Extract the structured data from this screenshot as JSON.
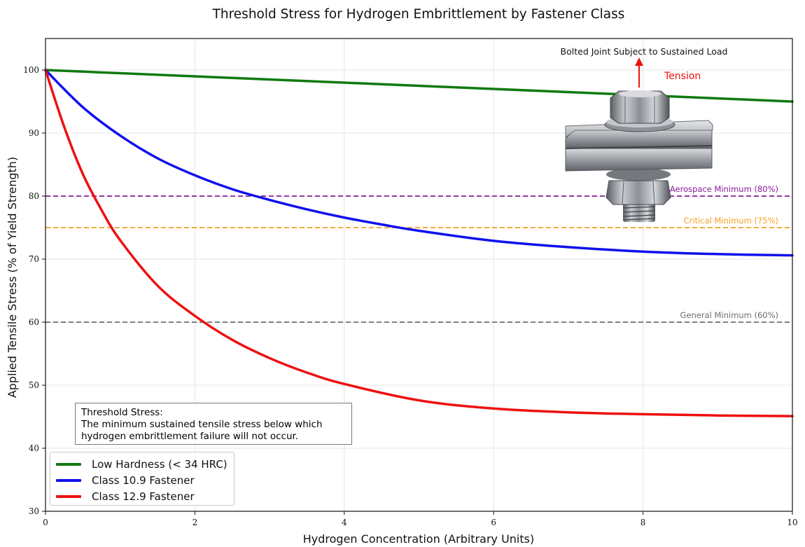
{
  "chart_data": {
    "type": "line",
    "title": "Threshold Stress for Hydrogen Embrittlement by Fastener Class",
    "xlabel": "Hydrogen Concentration (Arbitrary Units)",
    "ylabel": "Applied Tensile Stress (% of Yield Strength)",
    "xlim": [
      0,
      10
    ],
    "ylim": [
      30,
      105
    ],
    "xticks": [
      0,
      2,
      4,
      6,
      8,
      10
    ],
    "yticks": [
      30,
      40,
      50,
      60,
      70,
      80,
      90,
      100
    ],
    "grid": true,
    "legend_position": "lower-left",
    "series": [
      {
        "name": "Low Hardness (< 34 HRC)",
        "color": "#107a10",
        "x": [
          0,
          1,
          2,
          3,
          4,
          5,
          6,
          7,
          8,
          9,
          10
        ],
        "y": [
          100,
          99.5,
          99.0,
          98.5,
          98.0,
          97.5,
          97.0,
          96.5,
          96.0,
          95.5,
          95.0
        ]
      },
      {
        "name": "Class 10.9 Fastener",
        "color": "#1010ee",
        "x": [
          0,
          0.5,
          1,
          1.5,
          2,
          2.5,
          3,
          3.5,
          4,
          4.5,
          5,
          6,
          7,
          8,
          9,
          10
        ],
        "y": [
          100,
          94.1,
          89.6,
          86.0,
          83.3,
          81.1,
          79.4,
          77.9,
          76.6,
          75.5,
          74.5,
          72.9,
          71.9,
          71.2,
          70.8,
          70.6
        ]
      },
      {
        "name": "Class 12.9 Fastener",
        "color": "#ee1010",
        "x": [
          0,
          0.25,
          0.5,
          0.75,
          1,
          1.5,
          2,
          2.5,
          3,
          3.5,
          4,
          5,
          6,
          7,
          8,
          9,
          10
        ],
        "y": [
          100,
          91.0,
          83.5,
          77.8,
          73.0,
          65.8,
          61.0,
          57.2,
          54.3,
          52.0,
          50.2,
          47.6,
          46.3,
          45.7,
          45.4,
          45.2,
          45.1
        ]
      }
    ],
    "reference_lines": [
      {
        "label": "Aerospace Minimum (80%)",
        "y": 80,
        "color": "#8b1a9b"
      },
      {
        "label": "Critical Minimum (75%)",
        "y": 75,
        "color": "#f4a020"
      },
      {
        "label": "General Minimum (60%)",
        "y": 60,
        "color": "#6e6e6e"
      }
    ],
    "annotations": {
      "joint_caption": "Bolted Joint Subject to Sustained Load",
      "tension_label": "Tension"
    }
  },
  "note": {
    "title": "Threshold Stress:",
    "line1": "The minimum sustained tensile stress below which",
    "line2": "hydrogen embrittlement failure will not occur."
  }
}
